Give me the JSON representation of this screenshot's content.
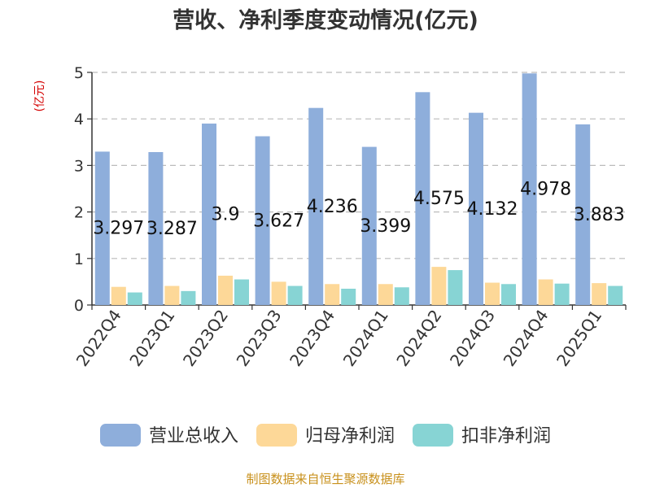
{
  "chart_data": {
    "type": "bar",
    "title": "营收、净利季度变动情况(亿元)",
    "unit_label": "(亿元)",
    "categories": [
      "2022Q4",
      "2023Q1",
      "2023Q2",
      "2023Q3",
      "2023Q4",
      "2024Q1",
      "2024Q2",
      "2024Q3",
      "2024Q4",
      "2025Q1"
    ],
    "series": [
      {
        "name": "营业总收入",
        "color": "#8eaedb",
        "values": [
          3.297,
          3.287,
          3.9,
          3.627,
          4.236,
          3.399,
          4.575,
          4.132,
          4.978,
          3.883
        ],
        "labels": [
          "3.297",
          "3.287",
          "3.9",
          "3.627",
          "4.236",
          "3.399",
          "4.575",
          "4.132",
          "4.978",
          "3.883"
        ]
      },
      {
        "name": "归母净利润",
        "color": "#fdd898",
        "values": [
          0.39,
          0.41,
          0.63,
          0.5,
          0.45,
          0.45,
          0.82,
          0.48,
          0.55,
          0.47
        ]
      },
      {
        "name": "扣非净利润",
        "color": "#87d4d4",
        "values": [
          0.27,
          0.3,
          0.55,
          0.41,
          0.35,
          0.38,
          0.75,
          0.45,
          0.46,
          0.41
        ]
      }
    ],
    "yticks": [
      "0",
      "1",
      "2",
      "3",
      "4",
      "5"
    ],
    "ylim": [
      0,
      5
    ],
    "grid": true,
    "legend_position": "bottom"
  },
  "footer": {
    "source": "制图数据来自恒生聚源数据库"
  }
}
